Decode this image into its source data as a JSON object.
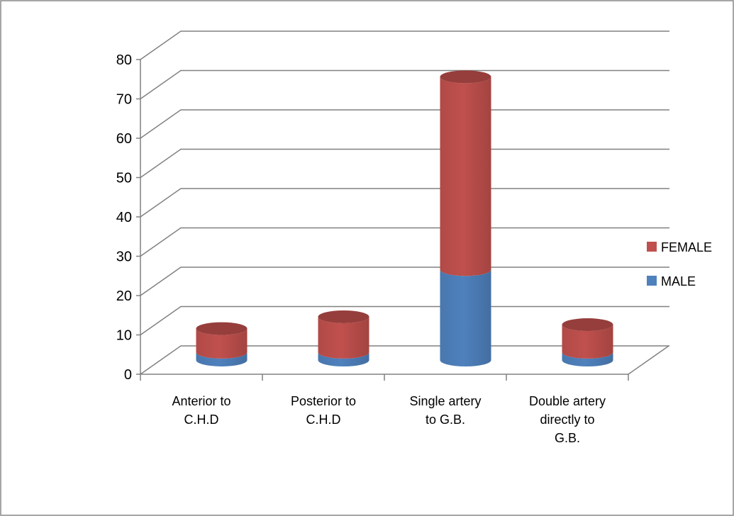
{
  "chart_data": {
    "type": "bar",
    "stacked": true,
    "style": "3d-cylinder",
    "title": "",
    "xlabel": "",
    "ylabel": "",
    "ylim": [
      0,
      80
    ],
    "yticks": [
      "0",
      "10",
      "20",
      "30",
      "40",
      "50",
      "60",
      "70",
      "80"
    ],
    "grid": true,
    "legend_position": "right",
    "categories": [
      [
        "Anterior to",
        "C.H.D"
      ],
      [
        "Posterior to",
        "C.H.D"
      ],
      [
        "Single artery",
        "to G.B."
      ],
      [
        "Double artery",
        "directly to",
        "G.B."
      ]
    ],
    "series": [
      {
        "name": "MALE",
        "color": "#4f81bd",
        "values": [
          2,
          2,
          23,
          2
        ]
      },
      {
        "name": "FEMALE",
        "color": "#c0504d",
        "values": [
          6,
          9,
          49,
          7
        ]
      }
    ],
    "legend": [
      "FEMALE",
      "MALE"
    ]
  }
}
